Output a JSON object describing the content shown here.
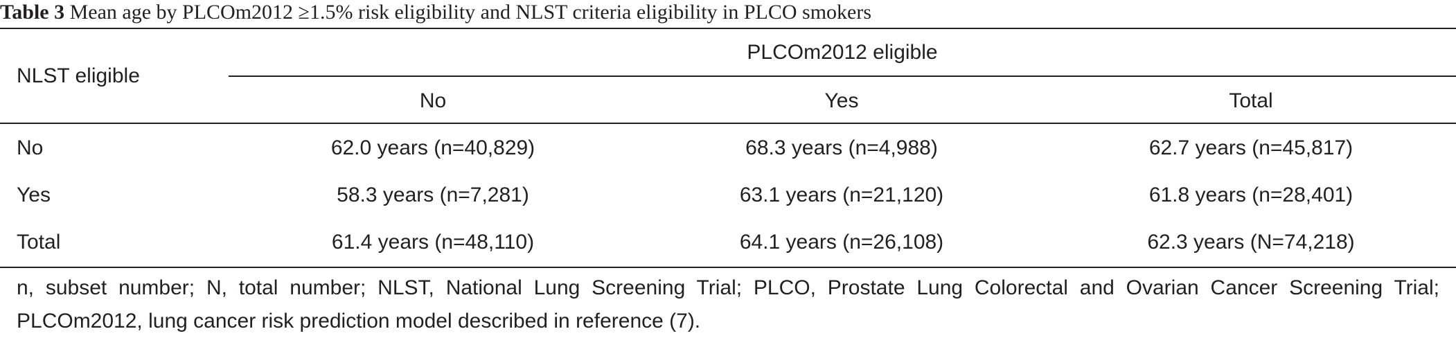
{
  "caption": {
    "label": "Table 3",
    "text": "Mean age by PLCOm2012 ≥1.5% risk eligibility and NLST criteria eligibility in PLCO smokers"
  },
  "header": {
    "row_label": "NLST eligible",
    "group_label": "PLCOm2012 eligible",
    "columns": [
      "No",
      "Yes",
      "Total"
    ]
  },
  "rows": [
    {
      "label": "No",
      "values": [
        "62.0 years (n=40,829)",
        "68.3 years (n=4,988)",
        "62.7 years (n=45,817)"
      ]
    },
    {
      "label": "Yes",
      "values": [
        "58.3 years (n=7,281)",
        "63.1 years (n=21,120)",
        "61.8 years (n=28,401)"
      ]
    },
    {
      "label": "Total",
      "values": [
        "61.4 years (n=48,110)",
        "64.1 years (n=26,108)",
        "62.3 years (N=74,218)"
      ]
    }
  ],
  "footnote": "n, subset number; N, total number; NLST, National Lung Screening Trial; PLCO, Prostate Lung Colorectal and Ovarian Cancer Screening Trial; PLCOm2012, lung cancer risk prediction model described in reference (7)."
}
